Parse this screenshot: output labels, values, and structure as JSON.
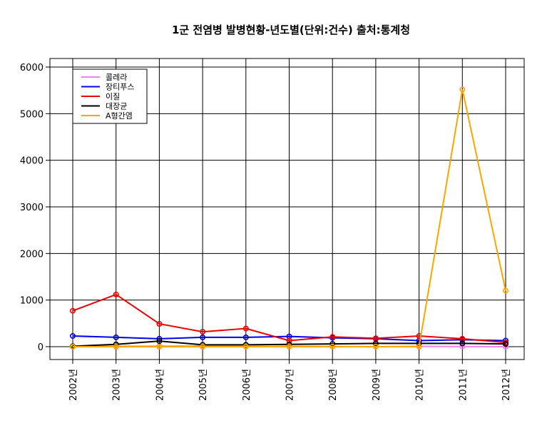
{
  "chart_data": {
    "type": "line",
    "title": "1군 전염병 발병현황-년도별(단위:건수)  출처:통계청",
    "xlabel": "",
    "ylabel": "",
    "categories": [
      "2002년",
      "2003년",
      "2004년",
      "2005년",
      "2006년",
      "2007년",
      "2008년",
      "2009년",
      "2010년",
      "2011년",
      "2012년"
    ],
    "ylim": [
      0,
      6000
    ],
    "yticks": [
      0,
      1000,
      2000,
      3000,
      4000,
      5000,
      6000
    ],
    "grid": true,
    "legend_position": "top-left",
    "series": [
      {
        "name": "콜레라",
        "color": "#ee82ee",
        "values": [
          2,
          10,
          11,
          16,
          5,
          7,
          5,
          0,
          8,
          3,
          0
        ]
      },
      {
        "name": "장티푸스",
        "color": "#0000ee",
        "values": [
          230,
          200,
          170,
          200,
          200,
          220,
          190,
          170,
          130,
          150,
          130
        ]
      },
      {
        "name": "이질",
        "color": "#ee0000",
        "values": [
          770,
          1120,
          490,
          320,
          390,
          130,
          210,
          180,
          230,
          170,
          90
        ]
      },
      {
        "name": "대장균",
        "color": "#000000",
        "values": [
          10,
          50,
          120,
          40,
          40,
          50,
          60,
          70,
          70,
          70,
          60
        ]
      },
      {
        "name": "A형간염",
        "color": "#ffa500",
        "values": [
          0,
          0,
          0,
          0,
          0,
          0,
          0,
          0,
          0,
          5520,
          1200
        ]
      }
    ]
  }
}
